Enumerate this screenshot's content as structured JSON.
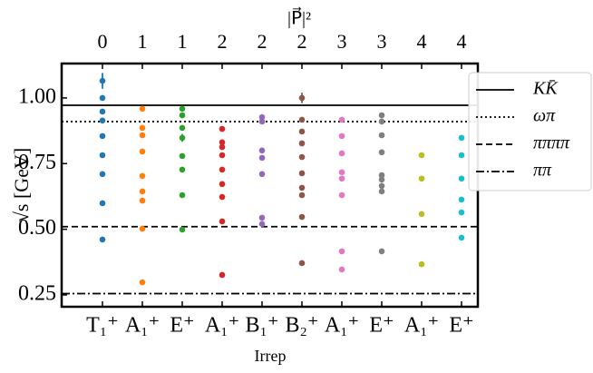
{
  "chart_data": {
    "type": "scatter",
    "x_label": "Irrep",
    "y_label": "√s [GeV]",
    "top_label": "|P⃗|²",
    "categories": [
      "T₁⁺",
      "A₁⁺",
      "E⁺",
      "A₁⁺",
      "B₁⁺",
      "B₂⁺",
      "A₁⁺",
      "E⁺",
      "A₁⁺",
      "E⁺"
    ],
    "top_categories": [
      "0",
      "1",
      "1",
      "2",
      "2",
      "2",
      "3",
      "3",
      "4",
      "4"
    ],
    "ylim": [
      0.205,
      1.131
    ],
    "yticks": [
      {
        "value": 0.25,
        "label": "0.25"
      },
      {
        "value": 0.5,
        "label": "0.50"
      },
      {
        "value": 0.75,
        "label": "0.75"
      },
      {
        "value": 1.0,
        "label": "1.00"
      }
    ],
    "series": [
      {
        "color": "#1f77b4",
        "values": [
          1.065,
          1.0,
          0.948,
          0.914,
          0.855,
          0.782,
          0.71,
          0.599,
          0.461
        ],
        "errors": [
          0.03,
          null,
          null,
          null,
          null,
          null,
          null,
          null,
          null
        ]
      },
      {
        "color": "#ff7f0e",
        "values": [
          0.959,
          0.886,
          0.858,
          0.796,
          0.703,
          0.644,
          0.609,
          0.502,
          0.298
        ]
      },
      {
        "color": "#2ca02c",
        "values": [
          0.959,
          0.934,
          0.886,
          0.848,
          0.779,
          0.727,
          0.63,
          0.499
        ],
        "errors": [
          null,
          null,
          null,
          0.015,
          null,
          null,
          null,
          null
        ]
      },
      {
        "color": "#d62728",
        "values": [
          0.882,
          0.831,
          0.813,
          0.782,
          0.727,
          0.672,
          0.623,
          0.53,
          0.326
        ]
      },
      {
        "color": "#9467bd",
        "values": [
          0.927,
          0.91,
          0.8,
          0.772,
          0.71,
          0.544,
          0.52
        ]
      },
      {
        "color": "#8c564b",
        "values": [
          1.0,
          0.917,
          0.872,
          0.827,
          0.775,
          0.713,
          0.658,
          0.63,
          0.547,
          0.371
        ],
        "errors": [
          0.02,
          null,
          null,
          null,
          null,
          null,
          null,
          null,
          null,
          null
        ]
      },
      {
        "color": "#e377c2",
        "values": [
          0.917,
          0.855,
          0.789,
          0.717,
          0.693,
          0.63,
          0.416,
          0.347
        ]
      },
      {
        "color": "#7f7f7f",
        "values": [
          0.934,
          0.91,
          0.858,
          0.793,
          0.706,
          0.689,
          0.665,
          0.644,
          0.416
        ]
      },
      {
        "color": "#bcbd22",
        "values": [
          0.782,
          0.693,
          0.558,
          0.367
        ]
      },
      {
        "color": "#17becf",
        "values": [
          0.848,
          0.782,
          0.693,
          0.613,
          0.564,
          0.468
        ]
      }
    ],
    "hlines": [
      {
        "name": "KK̄",
        "value": 0.972,
        "style": "solid"
      },
      {
        "name": "ωπ",
        "value": 0.91,
        "style": "dotted"
      },
      {
        "name": "ππππ",
        "value": 0.51,
        "style": "dashed"
      },
      {
        "name": "ππ",
        "value": 0.255,
        "style": "dashdot"
      }
    ]
  }
}
